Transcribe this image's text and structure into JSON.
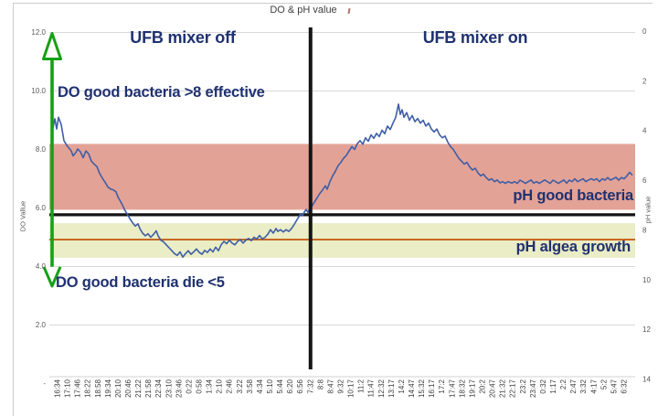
{
  "window": {
    "title": "DO & pH value"
  },
  "chart_data": {
    "type": "line",
    "title": "DO & pH value",
    "annotations": {
      "mixer_off": "UFB mixer off",
      "mixer_on": "UFB mixer on",
      "do_effective": "DO good bacteria >8 effective",
      "do_die": "DO good bacteria die <5",
      "ph_good": "pH good bacteria",
      "ph_algea": "pH algea growth"
    },
    "y_axis_left": {
      "label": "DO Vallue",
      "range": [
        0,
        12.8
      ],
      "ticks": [
        {
          "value": 12,
          "label": "12.0"
        },
        {
          "value": 10,
          "label": "10.0"
        },
        {
          "value": 8,
          "label": "8.0"
        },
        {
          "value": 6,
          "label": "6.0"
        },
        {
          "value": 4,
          "label": "4.0"
        },
        {
          "value": 2,
          "label": "2.0"
        },
        {
          "value": 0,
          "label": "-"
        }
      ]
    },
    "y_axis_right": {
      "label": "pH value",
      "range": [
        0,
        14
      ],
      "inverted": true,
      "ticks": [
        {
          "value": 0,
          "label": "0"
        },
        {
          "value": 2,
          "label": "2"
        },
        {
          "value": 4,
          "label": "4"
        },
        {
          "value": 6,
          "label": "6"
        },
        {
          "value": 8,
          "label": "8"
        },
        {
          "value": 10,
          "label": "10"
        },
        {
          "value": 12,
          "label": "12"
        },
        {
          "value": 14,
          "label": "14"
        }
      ]
    },
    "x_axis": {
      "labels": [
        "16:34",
        "17:10",
        "17:46",
        "18:22",
        "18:58",
        "19:34",
        "20:10",
        "20:46",
        "21:22",
        "21:58",
        "22:34",
        "23:10",
        "23:46",
        "0:22",
        "0:58",
        "1:34",
        "2:10",
        "2:46",
        "3:22",
        "3:58",
        "4:34",
        "5:10",
        "5:44",
        "6:20",
        "6:56",
        "7:32",
        "8:8",
        "8:47",
        "9:32",
        "10:17",
        "11:2",
        "11:47",
        "12:32",
        "13:17",
        "14:2",
        "14:47",
        "15:32",
        "16:17",
        "17:2",
        "17:47",
        "18:32",
        "19:17",
        "20:2",
        "20:47",
        "21:32",
        "22:17",
        "23:2",
        "23:47",
        "0:32",
        "1:17",
        "2:2",
        "2:47",
        "3:32",
        "4:17",
        "5:2",
        "5:47",
        "6:32"
      ]
    },
    "bands": [
      {
        "name": "ph-good-bacteria-band",
        "low": 5.94,
        "high": 8.19,
        "color": "#e3a296"
      },
      {
        "name": "ph-algea-growth-band",
        "low": 4.3,
        "high": 5.48,
        "color": "#eaedc5"
      }
    ],
    "ref_lines": [
      {
        "name": "do-threshold-line",
        "value": 5.77,
        "color": "#141414",
        "width": 3.2
      },
      {
        "name": "ph-target-line",
        "value": 4.92,
        "color": "#c55f17",
        "width": 1.8
      }
    ],
    "divider": {
      "at_label": "7:32",
      "color": "#141414",
      "width": 4
    },
    "arrow": {
      "color": "#16a016",
      "top_value": 12.0,
      "bottom_value": 3.3
    },
    "colors": {
      "grid": "#d9d9d9",
      "axis_text": "#595959",
      "annotation": "#1f3170"
    },
    "series": [
      {
        "name": "DO",
        "color": "#3f5ea6",
        "points": [
          [
            58,
            8.75
          ],
          [
            60,
            9.05
          ],
          [
            62,
            8.7
          ],
          [
            64,
            9.1
          ],
          [
            67,
            8.85
          ],
          [
            70,
            8.3
          ],
          [
            74,
            8.1
          ],
          [
            78,
            7.95
          ],
          [
            80,
            7.78
          ],
          [
            83,
            7.9
          ],
          [
            85,
            8.02
          ],
          [
            88,
            7.92
          ],
          [
            91,
            7.72
          ],
          [
            94,
            7.95
          ],
          [
            97,
            7.85
          ],
          [
            100,
            7.6
          ],
          [
            103,
            7.5
          ],
          [
            106,
            7.42
          ],
          [
            109,
            7.18
          ],
          [
            112,
            7.02
          ],
          [
            115,
            6.88
          ],
          [
            118,
            6.72
          ],
          [
            121,
            6.65
          ],
          [
            124,
            6.62
          ],
          [
            127,
            6.55
          ],
          [
            129,
            6.38
          ],
          [
            132,
            6.22
          ],
          [
            134,
            6.1
          ],
          [
            136,
            5.96
          ],
          [
            139,
            5.8
          ],
          [
            142,
            5.64
          ],
          [
            145,
            5.5
          ],
          [
            148,
            5.38
          ],
          [
            151,
            5.46
          ],
          [
            153,
            5.3
          ],
          [
            156,
            5.14
          ],
          [
            159,
            5.05
          ],
          [
            162,
            5.12
          ],
          [
            165,
            5.0
          ],
          [
            168,
            5.1
          ],
          [
            171,
            5.22
          ],
          [
            173,
            5.05
          ],
          [
            176,
            4.9
          ],
          [
            179,
            4.84
          ],
          [
            182,
            4.74
          ],
          [
            185,
            4.64
          ],
          [
            188,
            4.54
          ],
          [
            191,
            4.44
          ],
          [
            194,
            4.38
          ],
          [
            197,
            4.5
          ],
          [
            200,
            4.32
          ],
          [
            203,
            4.44
          ],
          [
            206,
            4.54
          ],
          [
            209,
            4.42
          ],
          [
            212,
            4.5
          ],
          [
            215,
            4.6
          ],
          [
            218,
            4.48
          ],
          [
            221,
            4.42
          ],
          [
            224,
            4.55
          ],
          [
            227,
            4.48
          ],
          [
            230,
            4.6
          ],
          [
            233,
            4.5
          ],
          [
            236,
            4.66
          ],
          [
            239,
            4.54
          ],
          [
            242,
            4.74
          ],
          [
            245,
            4.86
          ],
          [
            248,
            4.78
          ],
          [
            251,
            4.9
          ],
          [
            254,
            4.8
          ],
          [
            257,
            4.74
          ],
          [
            260,
            4.86
          ],
          [
            263,
            4.92
          ],
          [
            266,
            4.8
          ],
          [
            269,
            4.9
          ],
          [
            272,
            4.96
          ],
          [
            275,
            4.88
          ],
          [
            278,
            5.0
          ],
          [
            281,
            4.94
          ],
          [
            284,
            5.06
          ],
          [
            287,
            4.94
          ],
          [
            290,
            5.0
          ],
          [
            293,
            5.1
          ],
          [
            296,
            5.26
          ],
          [
            299,
            5.14
          ],
          [
            302,
            5.3
          ],
          [
            304,
            5.2
          ],
          [
            307,
            5.26
          ],
          [
            310,
            5.18
          ],
          [
            313,
            5.26
          ],
          [
            316,
            5.2
          ],
          [
            319,
            5.3
          ],
          [
            322,
            5.44
          ],
          [
            325,
            5.6
          ],
          [
            327,
            5.7
          ],
          [
            329,
            5.8
          ],
          [
            331,
            5.74
          ],
          [
            333,
            5.86
          ],
          [
            335,
            5.95
          ],
          [
            337,
            5.85
          ],
          [
            339,
            6.0
          ],
          [
            341,
            6.05
          ],
          [
            344,
            6.2
          ],
          [
            347,
            6.35
          ],
          [
            350,
            6.5
          ],
          [
            353,
            6.62
          ],
          [
            356,
            6.76
          ],
          [
            358,
            6.64
          ],
          [
            361,
            6.9
          ],
          [
            364,
            7.1
          ],
          [
            367,
            7.26
          ],
          [
            370,
            7.45
          ],
          [
            373,
            7.56
          ],
          [
            376,
            7.7
          ],
          [
            379,
            7.8
          ],
          [
            382,
            7.95
          ],
          [
            385,
            8.1
          ],
          [
            388,
            8.0
          ],
          [
            391,
            8.2
          ],
          [
            394,
            8.3
          ],
          [
            397,
            8.18
          ],
          [
            400,
            8.4
          ],
          [
            403,
            8.28
          ],
          [
            406,
            8.5
          ],
          [
            409,
            8.38
          ],
          [
            412,
            8.55
          ],
          [
            415,
            8.44
          ],
          [
            418,
            8.66
          ],
          [
            421,
            8.54
          ],
          [
            424,
            8.8
          ],
          [
            427,
            8.68
          ],
          [
            430,
            8.9
          ],
          [
            433,
            9.1
          ],
          [
            436,
            9.55
          ],
          [
            438,
            9.2
          ],
          [
            440,
            9.36
          ],
          [
            442,
            9.1
          ],
          [
            445,
            9.26
          ],
          [
            448,
            9.0
          ],
          [
            451,
            9.16
          ],
          [
            454,
            8.95
          ],
          [
            457,
            9.06
          ],
          [
            460,
            8.9
          ],
          [
            463,
            9.0
          ],
          [
            466,
            8.8
          ],
          [
            469,
            8.9
          ],
          [
            472,
            8.7
          ],
          [
            475,
            8.6
          ],
          [
            478,
            8.7
          ],
          [
            481,
            8.5
          ],
          [
            484,
            8.4
          ],
          [
            487,
            8.46
          ],
          [
            490,
            8.25
          ],
          [
            493,
            8.1
          ],
          [
            496,
            8.0
          ],
          [
            499,
            7.85
          ],
          [
            502,
            7.7
          ],
          [
            505,
            7.6
          ],
          [
            508,
            7.5
          ],
          [
            511,
            7.56
          ],
          [
            514,
            7.4
          ],
          [
            517,
            7.3
          ],
          [
            520,
            7.36
          ],
          [
            523,
            7.2
          ],
          [
            526,
            7.1
          ],
          [
            529,
            7.16
          ],
          [
            532,
            7.04
          ],
          [
            535,
            6.95
          ],
          [
            538,
            7.0
          ],
          [
            541,
            6.9
          ],
          [
            544,
            6.96
          ],
          [
            547,
            6.86
          ],
          [
            550,
            6.9
          ],
          [
            553,
            6.84
          ],
          [
            556,
            6.9
          ],
          [
            560,
            6.85
          ],
          [
            563,
            6.9
          ],
          [
            566,
            6.84
          ],
          [
            569,
            6.95
          ],
          [
            572,
            6.9
          ],
          [
            575,
            6.84
          ],
          [
            578,
            6.9
          ],
          [
            581,
            6.96
          ],
          [
            584,
            6.85
          ],
          [
            587,
            6.9
          ],
          [
            590,
            6.84
          ],
          [
            593,
            6.9
          ],
          [
            596,
            6.96
          ],
          [
            599,
            6.9
          ],
          [
            602,
            6.84
          ],
          [
            605,
            6.95
          ],
          [
            608,
            6.9
          ],
          [
            611,
            6.84
          ],
          [
            614,
            6.9
          ],
          [
            617,
            6.96
          ],
          [
            620,
            6.85
          ],
          [
            623,
            6.95
          ],
          [
            626,
            6.9
          ],
          [
            629,
            7.0
          ],
          [
            632,
            6.9
          ],
          [
            635,
            6.95
          ],
          [
            638,
            7.0
          ],
          [
            641,
            6.9
          ],
          [
            644,
            6.96
          ],
          [
            647,
            7.0
          ],
          [
            650,
            6.95
          ],
          [
            653,
            7.0
          ],
          [
            656,
            6.9
          ],
          [
            659,
            7.0
          ],
          [
            662,
            6.95
          ],
          [
            665,
            7.04
          ],
          [
            668,
            6.95
          ],
          [
            671,
            7.0
          ],
          [
            674,
            7.05
          ],
          [
            677,
            6.95
          ],
          [
            680,
            7.04
          ],
          [
            683,
            7.0
          ],
          [
            686,
            7.1
          ],
          [
            689,
            7.22
          ],
          [
            692,
            7.12
          ]
        ]
      }
    ]
  }
}
